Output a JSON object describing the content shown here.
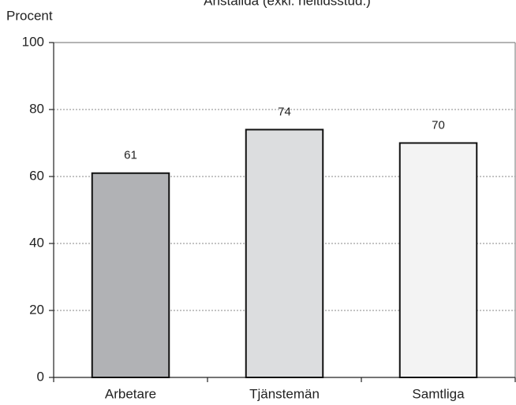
{
  "chart_data": {
    "type": "bar",
    "title": "Anställda (exkl. heltidsstud.)",
    "y_label": "Procent",
    "categories": [
      "Arbetare",
      "Tjänstemän",
      "Samtliga"
    ],
    "values": [
      61,
      74,
      70
    ],
    "colors": [
      "#b1b2b5",
      "#dcdddf",
      "#f3f3f3"
    ],
    "ylim": [
      0,
      100
    ],
    "yticks": [
      0,
      20,
      40,
      60,
      80,
      100
    ],
    "grid": true
  }
}
